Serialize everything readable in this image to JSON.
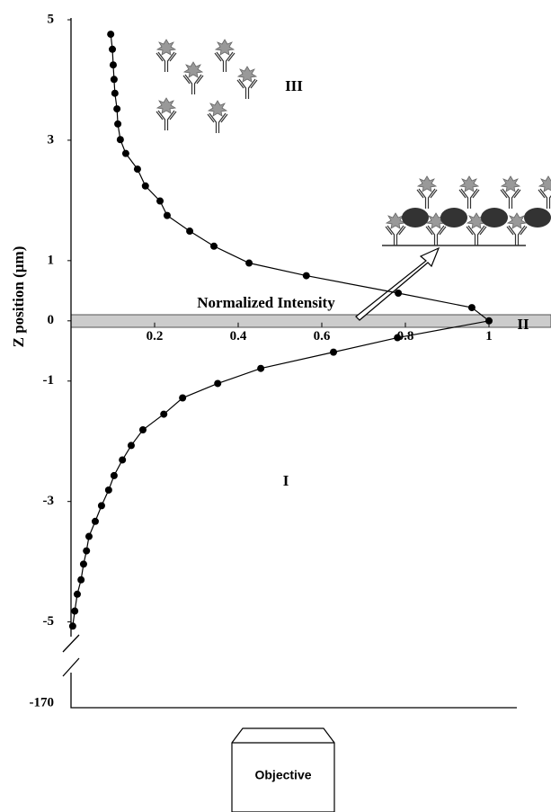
{
  "chart_data": {
    "type": "line",
    "x_label": "Normalized Intensity",
    "y_label": "Z position (µm)",
    "region_labels": [
      "III",
      "II",
      "I"
    ],
    "objective_label": "Objective",
    "xlim": [
      0,
      1
    ],
    "xticks": [
      0.2,
      0.4,
      0.6,
      0.8,
      1
    ],
    "ylim": [
      -5.2,
      5
    ],
    "yticks": [
      5,
      3,
      1,
      0,
      -1,
      -3,
      -5
    ],
    "y_break_tick": -170,
    "series": [
      {
        "color": "#000000",
        "x": [
          0.095,
          0.099,
          0.101,
          0.103,
          0.105,
          0.11,
          0.112,
          0.118,
          0.131,
          0.159,
          0.178,
          0.213,
          0.23,
          0.284,
          0.342,
          0.426,
          0.563,
          0.783,
          0.959,
          1.0,
          0.781,
          0.628,
          0.454,
          0.351,
          0.267,
          0.222,
          0.172,
          0.144,
          0.123,
          0.103,
          0.09,
          0.073,
          0.058,
          0.043,
          0.037,
          0.03,
          0.024,
          0.015,
          0.009,
          0.004
        ],
        "values": [
          4.76,
          4.51,
          4.25,
          4.01,
          3.78,
          3.52,
          3.27,
          3.01,
          2.78,
          2.52,
          2.24,
          1.99,
          1.75,
          1.49,
          1.24,
          0.96,
          0.75,
          0.46,
          0.22,
          0,
          -0.28,
          -0.52,
          -0.79,
          -1.04,
          -1.28,
          -1.55,
          -1.81,
          -2.07,
          -2.31,
          -2.57,
          -2.81,
          -3.07,
          -3.33,
          -3.58,
          -3.82,
          -4.04,
          -4.3,
          -4.54,
          -4.82,
          -5.07
        ]
      }
    ]
  }
}
